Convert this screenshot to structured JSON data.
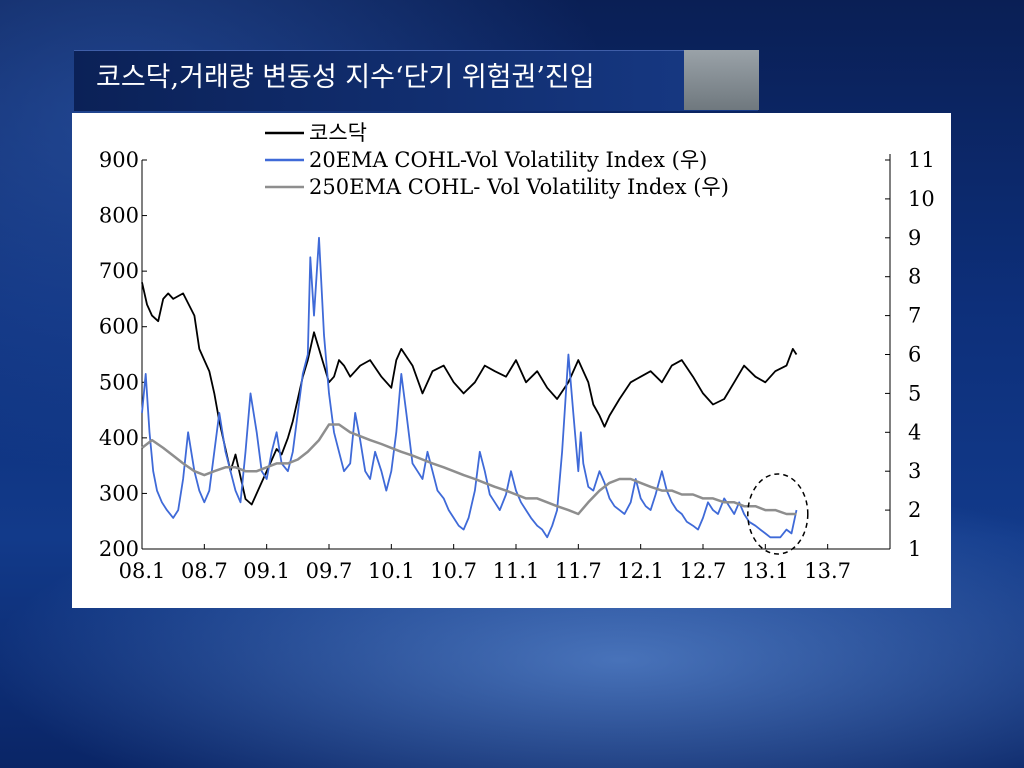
{
  "slide": {
    "title": "코스닥,거래량 변동성 지수‘단기 위험권’진입"
  },
  "chart_data": {
    "type": "line",
    "title": "",
    "x_tick_labels": [
      "08.1",
      "08.7",
      "09.1",
      "09.7",
      "10.1",
      "10.7",
      "11.1",
      "11.7",
      "12.1",
      "12.7",
      "13.1",
      "13.7"
    ],
    "left_axis": {
      "ticks": [
        200,
        300,
        400,
        500,
        600,
        700,
        800,
        900
      ],
      "ylim": [
        200,
        900
      ]
    },
    "right_axis": {
      "ticks": [
        1,
        2,
        3,
        4,
        5,
        6,
        7,
        8,
        9,
        10,
        11
      ],
      "ylim": [
        1,
        11
      ]
    },
    "x_range": [
      2008.0,
      2014.0
    ],
    "legend_position": "top-center",
    "grid": false,
    "annotation": "dashed circle around early 2013 end of series",
    "series": [
      {
        "name": "코스닥",
        "axis": "left",
        "color": "#000000",
        "x": [
          2008.0,
          2008.04,
          2008.08,
          2008.13,
          2008.17,
          2008.21,
          2008.25,
          2008.33,
          2008.42,
          2008.46,
          2008.5,
          2008.54,
          2008.58,
          2008.62,
          2008.67,
          2008.71,
          2008.75,
          2008.79,
          2008.83,
          2008.88,
          2008.92,
          2008.96,
          2009.0,
          2009.04,
          2009.08,
          2009.12,
          2009.17,
          2009.21,
          2009.25,
          2009.29,
          2009.33,
          2009.38,
          2009.42,
          2009.46,
          2009.5,
          2009.54,
          2009.58,
          2009.62,
          2009.67,
          2009.75,
          2009.83,
          2009.92,
          2010.0,
          2010.04,
          2010.08,
          2010.17,
          2010.25,
          2010.33,
          2010.42,
          2010.5,
          2010.58,
          2010.67,
          2010.75,
          2010.83,
          2010.92,
          2011.0,
          2011.08,
          2011.17,
          2011.25,
          2011.33,
          2011.42,
          2011.5,
          2011.54,
          2011.58,
          2011.62,
          2011.67,
          2011.71,
          2011.75,
          2011.83,
          2011.92,
          2012.0,
          2012.08,
          2012.17,
          2012.25,
          2012.33,
          2012.42,
          2012.5,
          2012.58,
          2012.67,
          2012.75,
          2012.83,
          2012.92,
          2013.0,
          2013.08,
          2013.17,
          2013.22,
          2013.25
        ],
        "y": [
          680,
          640,
          620,
          610,
          650,
          660,
          650,
          660,
          620,
          560,
          540,
          520,
          480,
          430,
          380,
          340,
          370,
          330,
          290,
          280,
          300,
          320,
          340,
          360,
          380,
          370,
          400,
          430,
          470,
          510,
          540,
          590,
          560,
          530,
          500,
          510,
          540,
          530,
          510,
          530,
          540,
          510,
          490,
          540,
          560,
          530,
          480,
          520,
          530,
          500,
          480,
          500,
          530,
          520,
          510,
          540,
          500,
          520,
          490,
          470,
          500,
          540,
          520,
          500,
          460,
          440,
          420,
          440,
          470,
          500,
          510,
          520,
          500,
          530,
          540,
          510,
          480,
          460,
          470,
          500,
          530,
          510,
          500,
          520,
          530,
          560,
          550
        ]
      },
      {
        "name": "20EMA COHL-Vol Volatility Index (우)",
        "axis": "right",
        "color": "#3f6ad8",
        "x": [
          2008.0,
          2008.03,
          2008.06,
          2008.09,
          2008.12,
          2008.16,
          2008.2,
          2008.25,
          2008.29,
          2008.33,
          2008.37,
          2008.42,
          2008.46,
          2008.5,
          2008.54,
          2008.58,
          2008.62,
          2008.67,
          2008.71,
          2008.75,
          2008.79,
          2008.83,
          2008.87,
          2008.92,
          2008.96,
          2009.0,
          2009.04,
          2009.08,
          2009.12,
          2009.17,
          2009.21,
          2009.25,
          2009.29,
          2009.33,
          2009.35,
          2009.38,
          2009.42,
          2009.46,
          2009.5,
          2009.54,
          2009.58,
          2009.62,
          2009.67,
          2009.71,
          2009.75,
          2009.79,
          2009.83,
          2009.87,
          2009.92,
          2009.96,
          2010.0,
          2010.04,
          2010.08,
          2010.12,
          2010.17,
          2010.21,
          2010.25,
          2010.29,
          2010.33,
          2010.37,
          2010.42,
          2010.46,
          2010.5,
          2010.54,
          2010.58,
          2010.62,
          2010.67,
          2010.71,
          2010.75,
          2010.79,
          2010.83,
          2010.87,
          2010.92,
          2010.96,
          2011.0,
          2011.04,
          2011.08,
          2011.12,
          2011.17,
          2011.21,
          2011.25,
          2011.29,
          2011.33,
          2011.37,
          2011.42,
          2011.46,
          2011.5,
          2011.52,
          2011.54,
          2011.58,
          2011.62,
          2011.67,
          2011.71,
          2011.75,
          2011.79,
          2011.83,
          2011.87,
          2011.92,
          2011.96,
          2012.0,
          2012.04,
          2012.08,
          2012.12,
          2012.17,
          2012.21,
          2012.25,
          2012.29,
          2012.33,
          2012.37,
          2012.42,
          2012.46,
          2012.5,
          2012.54,
          2012.58,
          2012.62,
          2012.67,
          2012.71,
          2012.75,
          2012.79,
          2012.83,
          2012.87,
          2012.92,
          2012.96,
          2013.0,
          2013.04,
          2013.08,
          2013.12,
          2013.17,
          2013.21,
          2013.25
        ],
        "y": [
          4.5,
          5.5,
          4.0,
          3.0,
          2.5,
          2.2,
          2.0,
          1.8,
          2.0,
          2.8,
          4.0,
          3.0,
          2.5,
          2.2,
          2.5,
          3.5,
          4.5,
          3.5,
          3.0,
          2.5,
          2.2,
          3.5,
          5.0,
          4.0,
          3.0,
          2.8,
          3.5,
          4.0,
          3.2,
          3.0,
          3.5,
          4.5,
          5.5,
          6.0,
          8.5,
          7.0,
          9.0,
          6.5,
          5.0,
          4.0,
          3.5,
          3.0,
          3.2,
          4.5,
          3.8,
          3.0,
          2.8,
          3.5,
          3.0,
          2.5,
          3.0,
          4.0,
          5.5,
          4.5,
          3.2,
          3.0,
          2.8,
          3.5,
          3.0,
          2.5,
          2.3,
          2.0,
          1.8,
          1.6,
          1.5,
          1.8,
          2.5,
          3.5,
          3.0,
          2.4,
          2.2,
          2.0,
          2.4,
          3.0,
          2.5,
          2.2,
          2.0,
          1.8,
          1.6,
          1.5,
          1.3,
          1.6,
          2.0,
          3.5,
          6.0,
          4.5,
          3.0,
          4.0,
          3.2,
          2.6,
          2.5,
          3.0,
          2.7,
          2.3,
          2.1,
          2.0,
          1.9,
          2.2,
          2.8,
          2.3,
          2.1,
          2.0,
          2.4,
          3.0,
          2.5,
          2.2,
          2.0,
          1.9,
          1.7,
          1.6,
          1.5,
          1.8,
          2.2,
          2.0,
          1.9,
          2.3,
          2.1,
          1.9,
          2.2,
          1.9,
          1.7,
          1.6,
          1.5,
          1.4,
          1.3,
          1.3,
          1.3,
          1.5,
          1.4,
          2.0
        ]
      },
      {
        "name": "250EMA COHL- Vol Volatility Index (우)",
        "axis": "right",
        "color": "#8e8e8e",
        "x": [
          2008.0,
          2008.08,
          2008.17,
          2008.25,
          2008.33,
          2008.42,
          2008.5,
          2008.58,
          2008.67,
          2008.75,
          2008.83,
          2008.92,
          2009.0,
          2009.08,
          2009.17,
          2009.25,
          2009.33,
          2009.42,
          2009.5,
          2009.58,
          2009.67,
          2009.75,
          2009.83,
          2009.92,
          2010.0,
          2010.08,
          2010.17,
          2010.25,
          2010.33,
          2010.42,
          2010.5,
          2010.58,
          2010.67,
          2010.75,
          2010.83,
          2010.92,
          2011.0,
          2011.08,
          2011.17,
          2011.25,
          2011.33,
          2011.42,
          2011.5,
          2011.58,
          2011.67,
          2011.75,
          2011.83,
          2011.92,
          2012.0,
          2012.08,
          2012.17,
          2012.25,
          2012.33,
          2012.42,
          2012.5,
          2012.58,
          2012.67,
          2012.75,
          2012.83,
          2012.92,
          2013.0,
          2013.08,
          2013.17,
          2013.25
        ],
        "y": [
          3.6,
          3.8,
          3.6,
          3.4,
          3.2,
          3.0,
          2.9,
          3.0,
          3.1,
          3.1,
          3.0,
          3.0,
          3.1,
          3.2,
          3.2,
          3.3,
          3.5,
          3.8,
          4.2,
          4.2,
          4.0,
          3.9,
          3.8,
          3.7,
          3.6,
          3.5,
          3.4,
          3.3,
          3.2,
          3.1,
          3.0,
          2.9,
          2.8,
          2.7,
          2.6,
          2.5,
          2.4,
          2.3,
          2.3,
          2.2,
          2.1,
          2.0,
          1.9,
          2.2,
          2.5,
          2.7,
          2.8,
          2.8,
          2.7,
          2.6,
          2.5,
          2.5,
          2.4,
          2.4,
          2.3,
          2.3,
          2.2,
          2.2,
          2.1,
          2.1,
          2.0,
          2.0,
          1.9,
          1.9
        ]
      }
    ]
  }
}
